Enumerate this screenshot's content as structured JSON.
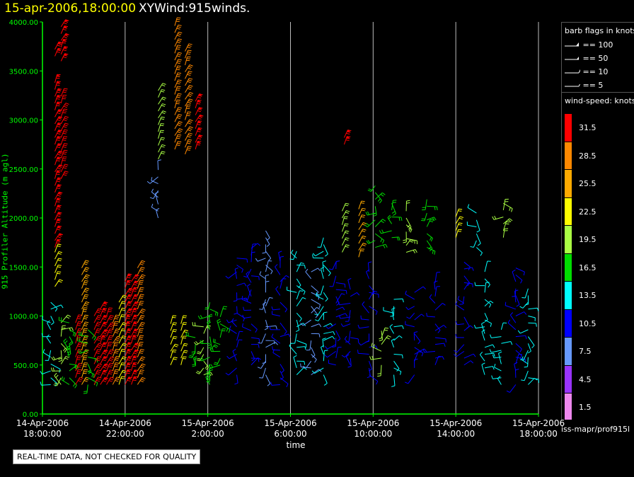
{
  "header": {
    "date": "15-apr-2006,18:00:00",
    "name": "XYWind:915winds."
  },
  "footer_note": "REAL-TIME DATA, NOT CHECKED FOR QUALITY",
  "source": "iss-mapr/prof915l",
  "colors": {
    "background": "#000000",
    "axis": "#00ff00",
    "header_date": "#ffff00"
  },
  "flag_legend": {
    "title": "barb flags in knots",
    "items": [
      "== 100",
      "== 50",
      "== 10",
      "== 5"
    ]
  },
  "speed_legend": {
    "title": "wind-speed: knots",
    "items": [
      {
        "label": "31.5",
        "color": "#ff0000"
      },
      {
        "label": "28.5",
        "color": "#ff8800"
      },
      {
        "label": "25.5",
        "color": "#ffaa00"
      },
      {
        "label": "22.5",
        "color": "#ffff00"
      },
      {
        "label": "19.5",
        "color": "#aaff44"
      },
      {
        "label": "16.5",
        "color": "#00dd00"
      },
      {
        "label": "13.5",
        "color": "#00ffff"
      },
      {
        "label": "10.5",
        "color": "#0000ff"
      },
      {
        "label": "7.5",
        "color": "#6699ff"
      },
      {
        "label": "4.5",
        "color": "#9933ff"
      },
      {
        "label": "1.5",
        "color": "#ee88ee"
      }
    ]
  },
  "chart_data": {
    "type": "scatter",
    "title": "",
    "xlabel": "time",
    "ylabel": "915 Profiler Altitude (m agl)",
    "ylim": [
      0,
      4000
    ],
    "xlim_hours": [
      0,
      24
    ],
    "y_ticks": [
      "0.00",
      "500.00",
      "1000.00",
      "1500.00",
      "2000.00",
      "2500.00",
      "3000.00",
      "3500.00",
      "4000.00"
    ],
    "x_ticks": [
      {
        "date": "14-Apr-2006",
        "time": "18:00:00",
        "hours": 0
      },
      {
        "date": "14-Apr-2006",
        "time": "22:00:00",
        "hours": 4
      },
      {
        "date": "15-Apr-2006",
        "time": "2:00:00",
        "hours": 8
      },
      {
        "date": "15-Apr-2006",
        "time": "6:00:00",
        "hours": 12
      },
      {
        "date": "15-Apr-2006",
        "time": "10:00:00",
        "hours": 16
      },
      {
        "date": "15-Apr-2006",
        "time": "14:00:00",
        "hours": 20
      },
      {
        "date": "15-Apr-2006",
        "time": "18:00:00",
        "hours": 24
      }
    ],
    "grid": "vertical lines at x ticks",
    "series_profiles": [
      {
        "hour": 0.4,
        "y_from": 300,
        "y_to": 1150,
        "speed": 14
      },
      {
        "hour": 0.6,
        "y_from": 1300,
        "y_to": 1650,
        "speed": 22
      },
      {
        "hour": 0.6,
        "y_from": 1700,
        "y_to": 3400,
        "speed": 31
      },
      {
        "hour": 0.6,
        "y_from": 3650,
        "y_to": 3750,
        "speed": 31
      },
      {
        "hour": 0.9,
        "y_from": 300,
        "y_to": 950,
        "speed": 18
      },
      {
        "hour": 0.9,
        "y_from": 2400,
        "y_to": 3300,
        "speed": 30
      },
      {
        "hour": 0.9,
        "y_from": 3600,
        "y_to": 4000,
        "speed": 33
      },
      {
        "hour": 1.3,
        "y_from": 300,
        "y_to": 950,
        "speed": 16
      },
      {
        "hour": 1.6,
        "y_from": 300,
        "y_to": 980,
        "speed": 30
      },
      {
        "hour": 1.9,
        "y_from": 300,
        "y_to": 1550,
        "speed": 26
      },
      {
        "hour": 2.2,
        "y_from": 300,
        "y_to": 900,
        "speed": 17
      },
      {
        "hour": 2.5,
        "y_from": 300,
        "y_to": 1050,
        "speed": 30
      },
      {
        "hour": 2.8,
        "y_from": 300,
        "y_to": 1080,
        "speed": 31
      },
      {
        "hour": 3.1,
        "y_from": 300,
        "y_to": 1000,
        "speed": 30
      },
      {
        "hour": 3.4,
        "y_from": 300,
        "y_to": 950,
        "speed": 28
      },
      {
        "hour": 3.7,
        "y_from": 300,
        "y_to": 1150,
        "speed": 22
      },
      {
        "hour": 4.0,
        "y_from": 300,
        "y_to": 1350,
        "speed": 32
      },
      {
        "hour": 4.3,
        "y_from": 300,
        "y_to": 1400,
        "speed": 31
      },
      {
        "hour": 4.6,
        "y_from": 300,
        "y_to": 1500,
        "speed": 28
      },
      {
        "hour": 5.6,
        "y_from": 2000,
        "y_to": 2500,
        "speed": 8
      },
      {
        "hour": 5.6,
        "y_from": 2600,
        "y_to": 3300,
        "speed": 20
      },
      {
        "hour": 6.2,
        "y_from": 500,
        "y_to": 950,
        "speed": 22
      },
      {
        "hour": 6.4,
        "y_from": 2700,
        "y_to": 4000,
        "speed": 27
      },
      {
        "hour": 6.7,
        "y_from": 500,
        "y_to": 950,
        "speed": 23
      },
      {
        "hour": 6.9,
        "y_from": 2650,
        "y_to": 3700,
        "speed": 29
      },
      {
        "hour": 7.4,
        "y_from": 2700,
        "y_to": 3200,
        "speed": 32
      },
      {
        "hour": 7.4,
        "y_from": 500,
        "y_to": 800,
        "speed": 17
      },
      {
        "hour": 7.8,
        "y_from": 400,
        "y_to": 900,
        "speed": 19
      },
      {
        "hour": 8.1,
        "y_from": 300,
        "y_to": 1200,
        "speed": 16
      },
      {
        "hour": 8.6,
        "y_from": 500,
        "y_to": 1050,
        "speed": 15
      },
      {
        "hour": 9.4,
        "y_from": 400,
        "y_to": 1600,
        "speed": 11
      },
      {
        "hour": 10.1,
        "y_from": 500,
        "y_to": 1700,
        "speed": 9
      },
      {
        "hour": 10.8,
        "y_from": 400,
        "y_to": 1900,
        "speed": 8
      },
      {
        "hour": 11.5,
        "y_from": 300,
        "y_to": 1600,
        "speed": 10
      },
      {
        "hour": 12.3,
        "y_from": 400,
        "y_to": 1700,
        "speed": 12
      },
      {
        "hour": 13.0,
        "y_from": 400,
        "y_to": 1500,
        "speed": 7
      },
      {
        "hour": 13.6,
        "y_from": 400,
        "y_to": 1800,
        "speed": 13
      },
      {
        "hour": 14.2,
        "y_from": 500,
        "y_to": 1600,
        "speed": 11
      },
      {
        "hour": 14.5,
        "y_from": 1650,
        "y_to": 2100,
        "speed": 20
      },
      {
        "hour": 14.6,
        "y_from": 2750,
        "y_to": 2850,
        "speed": 32
      },
      {
        "hour": 14.9,
        "y_from": 500,
        "y_to": 1300,
        "speed": 9
      },
      {
        "hour": 15.3,
        "y_from": 1600,
        "y_to": 2150,
        "speed": 24
      },
      {
        "hour": 15.8,
        "y_from": 400,
        "y_to": 1500,
        "speed": 10
      },
      {
        "hour": 16.1,
        "y_from": 1700,
        "y_to": 2350,
        "speed": 17
      },
      {
        "hour": 16.4,
        "y_from": 500,
        "y_to": 900,
        "speed": 18
      },
      {
        "hour": 16.9,
        "y_from": 1800,
        "y_to": 2200,
        "speed": 15
      },
      {
        "hour": 17.0,
        "y_from": 400,
        "y_to": 1200,
        "speed": 13
      },
      {
        "hour": 17.6,
        "y_from": 1650,
        "y_to": 2100,
        "speed": 19
      },
      {
        "hour": 18.0,
        "y_from": 400,
        "y_to": 1300,
        "speed": 11
      },
      {
        "hour": 18.6,
        "y_from": 1700,
        "y_to": 2200,
        "speed": 16
      },
      {
        "hour": 19.0,
        "y_from": 500,
        "y_to": 1400,
        "speed": 9
      },
      {
        "hour": 20.0,
        "y_from": 1800,
        "y_to": 2050,
        "speed": 23
      },
      {
        "hour": 20.4,
        "y_from": 500,
        "y_to": 1600,
        "speed": 10
      },
      {
        "hour": 21.0,
        "y_from": 1700,
        "y_to": 2050,
        "speed": 14
      },
      {
        "hour": 21.4,
        "y_from": 400,
        "y_to": 1500,
        "speed": 12
      },
      {
        "hour": 22.2,
        "y_from": 300,
        "y_to": 900,
        "speed": 14
      },
      {
        "hour": 22.3,
        "y_from": 1800,
        "y_to": 2150,
        "speed": 18
      },
      {
        "hour": 22.9,
        "y_from": 300,
        "y_to": 1500,
        "speed": 11
      },
      {
        "hour": 23.5,
        "y_from": 300,
        "y_to": 1300,
        "speed": 13
      }
    ]
  }
}
